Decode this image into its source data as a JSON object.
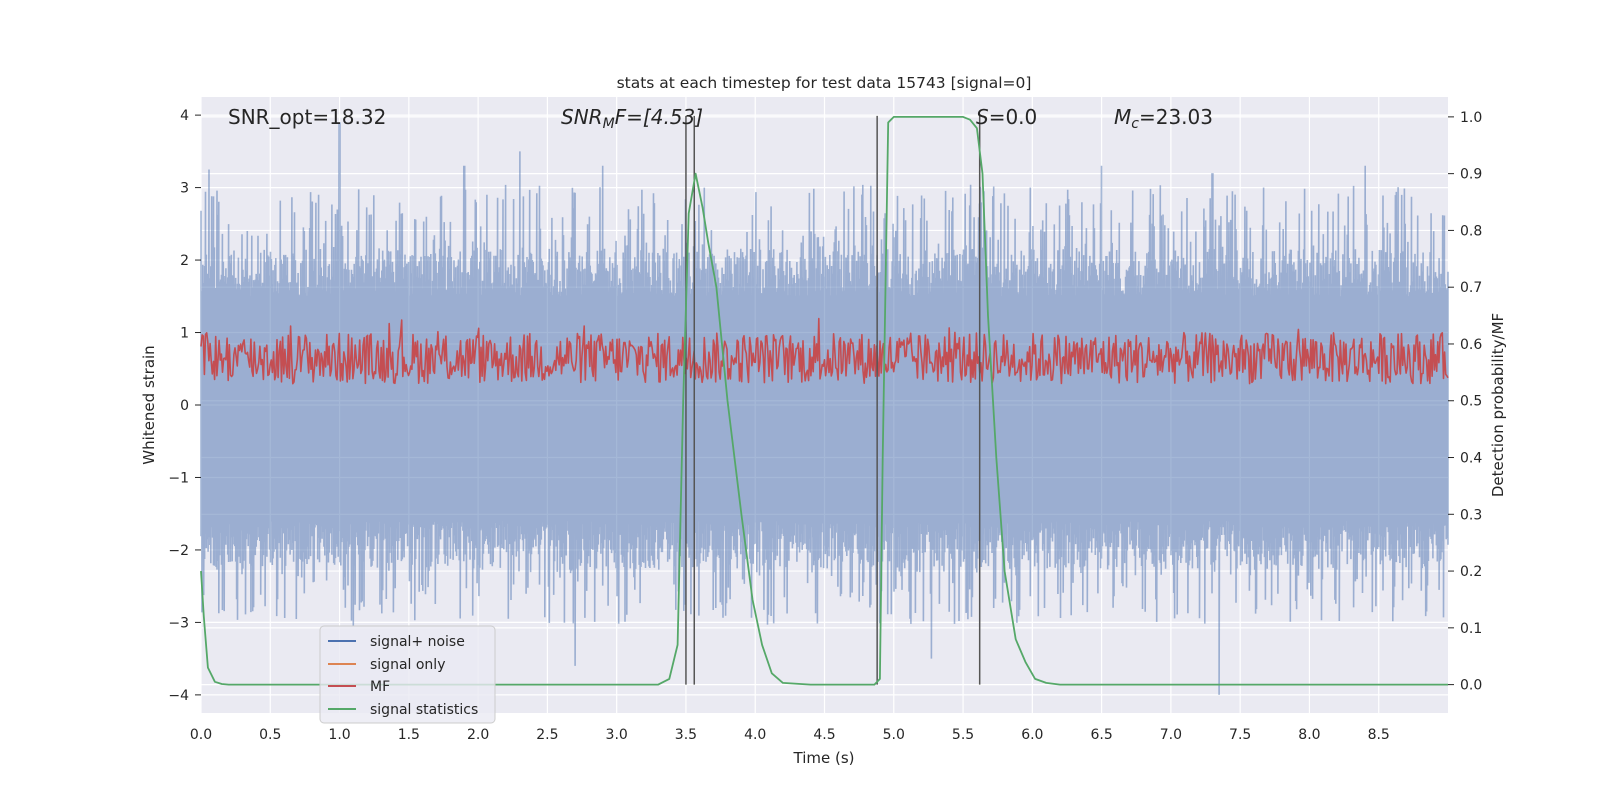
{
  "chart_data": {
    "type": "line",
    "title": "stats at each timestep for test data 15743 [signal=0]",
    "xlabel": "Time (s)",
    "ylabel": "Whitened strain",
    "ylabel_right": "Detection probability/MF",
    "xlim": [
      0,
      9.0
    ],
    "ylim": [
      -4.25,
      4.25
    ],
    "ylim_right": [
      -0.05,
      1.035
    ],
    "x_ticks": [
      0.0,
      0.5,
      1.0,
      1.5,
      2.0,
      2.5,
      3.0,
      3.5,
      4.0,
      4.5,
      5.0,
      5.5,
      6.0,
      6.5,
      7.0,
      7.5,
      8.0,
      8.5
    ],
    "x_tick_labels": [
      "0.0",
      "0.5",
      "1.0",
      "1.5",
      "2.0",
      "2.5",
      "3.0",
      "3.5",
      "4.0",
      "4.5",
      "5.0",
      "5.5",
      "6.0",
      "6.5",
      "7.0",
      "7.5",
      "8.0",
      "8.5"
    ],
    "y_ticks": [
      -4,
      -3,
      -2,
      -1,
      0,
      1,
      2,
      3,
      4
    ],
    "y_tick_labels": [
      "−4",
      "−3",
      "−2",
      "−1",
      "0",
      "1",
      "2",
      "3",
      "4"
    ],
    "y_ticks_right": [
      0.0,
      0.1,
      0.2,
      0.3,
      0.4,
      0.5,
      0.6,
      0.7,
      0.8,
      0.9,
      1.0
    ],
    "y_tick_labels_right": [
      "0.0",
      "0.1",
      "0.2",
      "0.3",
      "0.4",
      "0.5",
      "0.6",
      "0.7",
      "0.8",
      "0.9",
      "1.0"
    ],
    "annotations": {
      "snr_opt": "SNR_opt=18.32",
      "snr_mf_main": "SNR",
      "snr_mf_sub": "M",
      "snr_mf_rest": "F=[4.53]",
      "s_main": "S",
      "s_rest": "=0.0",
      "mc_main": "M",
      "mc_sub": "c",
      "mc_rest": "=23.03"
    },
    "noise_envelope": {
      "approx_upper": 1.5,
      "approx_lower": -1.6,
      "peak_spikes": [
        [
          0.06,
          3.25
        ],
        [
          1.0,
          3.9
        ],
        [
          1.9,
          3.3
        ],
        [
          2.3,
          3.5
        ],
        [
          2.9,
          3.3
        ],
        [
          6.5,
          3.3
        ],
        [
          7.3,
          3.2
        ],
        [
          8.4,
          3.3
        ],
        [
          2.7,
          -3.6
        ],
        [
          7.35,
          -4.0
        ],
        [
          5.27,
          -3.5
        ],
        [
          1.1,
          -3.05
        ]
      ]
    },
    "vertical_lines": [
      3.5,
      3.56,
      4.88,
      5.62
    ],
    "series": [
      {
        "name": "signal+ noise",
        "color": "#4c72b0",
        "axis": "left",
        "style": "dense-noise"
      },
      {
        "name": "signal only",
        "color": "#dd8452",
        "axis": "left",
        "values": []
      },
      {
        "name": "MF",
        "color": "#c44e52",
        "axis": "right",
        "style": "noise-band",
        "approx_range": [
          0.5,
          0.62
        ]
      },
      {
        "name": "signal statistics",
        "color": "#55a868",
        "axis": "right",
        "x": [
          0.0,
          0.02,
          0.05,
          0.1,
          0.15,
          0.2,
          0.3,
          3.3,
          3.38,
          3.44,
          3.48,
          3.52,
          3.57,
          3.62,
          3.66,
          3.72,
          3.8,
          3.9,
          3.98,
          4.05,
          4.12,
          4.2,
          4.4,
          4.86,
          4.9,
          4.92,
          4.96,
          5.0,
          5.2,
          5.4,
          5.5,
          5.55,
          5.6,
          5.64,
          5.68,
          5.74,
          5.8,
          5.88,
          5.95,
          6.02,
          6.1,
          6.2,
          6.3,
          9.0
        ],
        "y": [
          0.2,
          0.12,
          0.03,
          0.005,
          0.001,
          0.0,
          0.0,
          0.0,
          0.01,
          0.07,
          0.5,
          0.83,
          0.9,
          0.84,
          0.78,
          0.7,
          0.5,
          0.3,
          0.15,
          0.07,
          0.02,
          0.003,
          0.0,
          0.0,
          0.01,
          0.4,
          0.99,
          1.0,
          1.0,
          1.0,
          1.0,
          0.995,
          0.98,
          0.9,
          0.65,
          0.4,
          0.2,
          0.08,
          0.04,
          0.01,
          0.003,
          0.0,
          0.0,
          0.0
        ]
      }
    ],
    "legend": {
      "position": "lower-left",
      "entries": [
        {
          "label": "signal+ noise",
          "color": "#4c72b0"
        },
        {
          "label": "signal only",
          "color": "#dd8452"
        },
        {
          "label": "MF",
          "color": "#c44e52"
        },
        {
          "label": "signal statistics",
          "color": "#55a868"
        }
      ]
    }
  }
}
